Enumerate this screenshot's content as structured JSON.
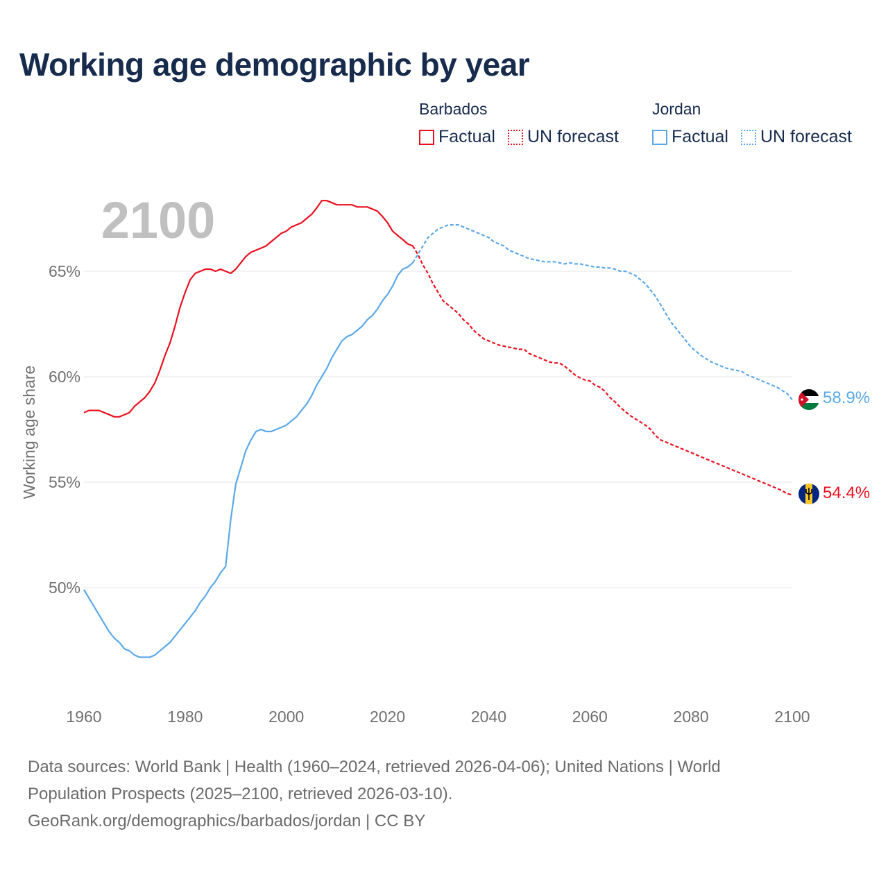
{
  "title": "Working age demographic by year",
  "legend": [
    {
      "country": "Barbados",
      "color": "#e8101e",
      "factual_label": "Factual",
      "forecast_label": "UN forecast"
    },
    {
      "country": "Jordan",
      "color": "#5ba8e8",
      "factual_label": "Factual",
      "forecast_label": "UN forecast"
    }
  ],
  "year_label": "2100",
  "footer": {
    "line1": "Data sources: World Bank | Health (1960–2024, retrieved 2026-04-06); United Nations | World",
    "line2": "Population Prospects (2025–2100, retrieved 2026-03-10).",
    "line3": "GeoRank.org/demographics/barbados/jordan | CC BY"
  },
  "colors": {
    "barbados": "#e8101e",
    "jordan": "#5ba8e8",
    "grid": "#e6e6e6",
    "axis_text": "#707070",
    "title": "#172b4d"
  },
  "chart_data": {
    "type": "line",
    "title": "Working age demographic by year",
    "xlabel": "",
    "ylabel": "Working age share",
    "xlim": [
      1960,
      2100
    ],
    "ylim": [
      45.5,
      68.5
    ],
    "x_ticks": [
      1960,
      1980,
      2000,
      2020,
      2040,
      2060,
      2080,
      2100
    ],
    "y_ticks": [
      50,
      55,
      60,
      65
    ],
    "y_tick_labels": [
      "50%",
      "55%",
      "60%",
      "65%"
    ],
    "x_tick_labels": [
      "1960",
      "1980",
      "2000",
      "2020",
      "2040",
      "2060",
      "2080",
      "2100"
    ],
    "forecast_start": 2025,
    "series": [
      {
        "name": "Barbados",
        "color": "#e8101e",
        "end_label": "54.4%",
        "flag": "barbados-flag",
        "points": [
          [
            1960,
            58.3
          ],
          [
            1961,
            58.4
          ],
          [
            1962,
            58.4
          ],
          [
            1963,
            58.4
          ],
          [
            1964,
            58.3
          ],
          [
            1965,
            58.2
          ],
          [
            1966,
            58.1
          ],
          [
            1967,
            58.1
          ],
          [
            1968,
            58.2
          ],
          [
            1969,
            58.3
          ],
          [
            1970,
            58.6
          ],
          [
            1971,
            58.8
          ],
          [
            1972,
            59.0
          ],
          [
            1973,
            59.3
          ],
          [
            1974,
            59.7
          ],
          [
            1975,
            60.3
          ],
          [
            1976,
            61.0
          ],
          [
            1977,
            61.6
          ],
          [
            1978,
            62.4
          ],
          [
            1979,
            63.3
          ],
          [
            1980,
            64.0
          ],
          [
            1981,
            64.6
          ],
          [
            1982,
            64.9
          ],
          [
            1983,
            65.0
          ],
          [
            1984,
            65.1
          ],
          [
            1985,
            65.1
          ],
          [
            1986,
            65.0
          ],
          [
            1987,
            65.1
          ],
          [
            1988,
            65.0
          ],
          [
            1989,
            64.9
          ],
          [
            1990,
            65.1
          ],
          [
            1991,
            65.4
          ],
          [
            1992,
            65.7
          ],
          [
            1993,
            65.9
          ],
          [
            1994,
            66.0
          ],
          [
            1995,
            66.1
          ],
          [
            1996,
            66.2
          ],
          [
            1997,
            66.4
          ],
          [
            1998,
            66.6
          ],
          [
            1999,
            66.8
          ],
          [
            2000,
            66.9
          ],
          [
            2001,
            67.1
          ],
          [
            2002,
            67.2
          ],
          [
            2003,
            67.3
          ],
          [
            2004,
            67.5
          ],
          [
            2005,
            67.7
          ],
          [
            2006,
            68.0
          ],
          [
            2007,
            68.35
          ],
          [
            2008,
            68.35
          ],
          [
            2009,
            68.25
          ],
          [
            2010,
            68.15
          ],
          [
            2011,
            68.15
          ],
          [
            2012,
            68.15
          ],
          [
            2013,
            68.15
          ],
          [
            2014,
            68.05
          ],
          [
            2015,
            68.05
          ],
          [
            2016,
            68.05
          ],
          [
            2017,
            67.95
          ],
          [
            2018,
            67.85
          ],
          [
            2019,
            67.6
          ],
          [
            2020,
            67.3
          ],
          [
            2021,
            66.9
          ],
          [
            2022,
            66.7
          ],
          [
            2023,
            66.5
          ],
          [
            2024,
            66.3
          ],
          [
            2025,
            66.2
          ],
          [
            2026,
            65.8
          ],
          [
            2027,
            65.3
          ],
          [
            2028,
            64.9
          ],
          [
            2029,
            64.4
          ],
          [
            2030,
            64.0
          ],
          [
            2031,
            63.6
          ],
          [
            2032,
            63.4
          ],
          [
            2033,
            63.2
          ],
          [
            2034,
            63.0
          ],
          [
            2035,
            62.7
          ],
          [
            2036,
            62.5
          ],
          [
            2037,
            62.2
          ],
          [
            2038,
            62.0
          ],
          [
            2039,
            61.8
          ],
          [
            2040,
            61.7
          ],
          [
            2041,
            61.6
          ],
          [
            2042,
            61.5
          ],
          [
            2043,
            61.45
          ],
          [
            2044,
            61.4
          ],
          [
            2045,
            61.35
          ],
          [
            2046,
            61.3
          ],
          [
            2047,
            61.3
          ],
          [
            2048,
            61.1
          ],
          [
            2049,
            61.0
          ],
          [
            2050,
            60.9
          ],
          [
            2051,
            60.8
          ],
          [
            2052,
            60.7
          ],
          [
            2053,
            60.65
          ],
          [
            2054,
            60.65
          ],
          [
            2055,
            60.5
          ],
          [
            2056,
            60.3
          ],
          [
            2057,
            60.1
          ],
          [
            2058,
            59.95
          ],
          [
            2059,
            59.85
          ],
          [
            2060,
            59.8
          ],
          [
            2061,
            59.6
          ],
          [
            2062,
            59.5
          ],
          [
            2063,
            59.3
          ],
          [
            2064,
            59.0
          ],
          [
            2065,
            58.8
          ],
          [
            2066,
            58.55
          ],
          [
            2067,
            58.35
          ],
          [
            2068,
            58.15
          ],
          [
            2069,
            58.0
          ],
          [
            2070,
            57.85
          ],
          [
            2071,
            57.7
          ],
          [
            2072,
            57.5
          ],
          [
            2073,
            57.2
          ],
          [
            2074,
            57.0
          ],
          [
            2075,
            56.9
          ],
          [
            2076,
            56.8
          ],
          [
            2077,
            56.7
          ],
          [
            2078,
            56.6
          ],
          [
            2079,
            56.5
          ],
          [
            2080,
            56.4
          ],
          [
            2081,
            56.3
          ],
          [
            2082,
            56.2
          ],
          [
            2083,
            56.1
          ],
          [
            2084,
            56.0
          ],
          [
            2085,
            55.9
          ],
          [
            2086,
            55.8
          ],
          [
            2087,
            55.7
          ],
          [
            2088,
            55.6
          ],
          [
            2089,
            55.5
          ],
          [
            2090,
            55.4
          ],
          [
            2091,
            55.3
          ],
          [
            2092,
            55.2
          ],
          [
            2093,
            55.1
          ],
          [
            2094,
            55.0
          ],
          [
            2095,
            54.9
          ],
          [
            2096,
            54.8
          ],
          [
            2097,
            54.7
          ],
          [
            2098,
            54.6
          ],
          [
            2099,
            54.45
          ],
          [
            2100,
            54.4
          ]
        ]
      },
      {
        "name": "Jordan",
        "color": "#5ba8e8",
        "end_label": "58.9%",
        "flag": "jordan-flag",
        "points": [
          [
            1960,
            49.9
          ],
          [
            1961,
            49.5
          ],
          [
            1962,
            49.1
          ],
          [
            1963,
            48.7
          ],
          [
            1964,
            48.3
          ],
          [
            1965,
            47.9
          ],
          [
            1966,
            47.6
          ],
          [
            1967,
            47.4
          ],
          [
            1968,
            47.1
          ],
          [
            1969,
            47.0
          ],
          [
            1970,
            46.8
          ],
          [
            1971,
            46.7
          ],
          [
            1972,
            46.7
          ],
          [
            1973,
            46.7
          ],
          [
            1974,
            46.8
          ],
          [
            1975,
            47.0
          ],
          [
            1976,
            47.2
          ],
          [
            1977,
            47.4
          ],
          [
            1978,
            47.7
          ],
          [
            1979,
            48.0
          ],
          [
            1980,
            48.3
          ],
          [
            1981,
            48.6
          ],
          [
            1982,
            48.9
          ],
          [
            1983,
            49.3
          ],
          [
            1984,
            49.6
          ],
          [
            1985,
            50.0
          ],
          [
            1986,
            50.3
          ],
          [
            1987,
            50.7
          ],
          [
            1988,
            51.0
          ],
          [
            1989,
            53.2
          ],
          [
            1990,
            54.9
          ],
          [
            1991,
            55.7
          ],
          [
            1992,
            56.5
          ],
          [
            1993,
            57.0
          ],
          [
            1994,
            57.4
          ],
          [
            1995,
            57.5
          ],
          [
            1996,
            57.4
          ],
          [
            1997,
            57.4
          ],
          [
            1998,
            57.5
          ],
          [
            1999,
            57.6
          ],
          [
            2000,
            57.7
          ],
          [
            2001,
            57.9
          ],
          [
            2002,
            58.1
          ],
          [
            2003,
            58.4
          ],
          [
            2004,
            58.7
          ],
          [
            2005,
            59.1
          ],
          [
            2006,
            59.6
          ],
          [
            2007,
            60.0
          ],
          [
            2008,
            60.4
          ],
          [
            2009,
            60.9
          ],
          [
            2010,
            61.3
          ],
          [
            2011,
            61.7
          ],
          [
            2012,
            61.9
          ],
          [
            2013,
            62.0
          ],
          [
            2014,
            62.2
          ],
          [
            2015,
            62.4
          ],
          [
            2016,
            62.7
          ],
          [
            2017,
            62.9
          ],
          [
            2018,
            63.2
          ],
          [
            2019,
            63.6
          ],
          [
            2020,
            63.9
          ],
          [
            2021,
            64.3
          ],
          [
            2022,
            64.8
          ],
          [
            2023,
            65.1
          ],
          [
            2024,
            65.2
          ],
          [
            2025,
            65.4
          ],
          [
            2026,
            65.8
          ],
          [
            2027,
            66.2
          ],
          [
            2028,
            66.6
          ],
          [
            2029,
            66.8
          ],
          [
            2030,
            67.0
          ],
          [
            2031,
            67.1
          ],
          [
            2032,
            67.2
          ],
          [
            2033,
            67.2
          ],
          [
            2034,
            67.2
          ],
          [
            2035,
            67.1
          ],
          [
            2036,
            67.0
          ],
          [
            2037,
            66.9
          ],
          [
            2038,
            66.8
          ],
          [
            2039,
            66.7
          ],
          [
            2040,
            66.6
          ],
          [
            2041,
            66.4
          ],
          [
            2042,
            66.3
          ],
          [
            2043,
            66.2
          ],
          [
            2044,
            66.0
          ],
          [
            2045,
            65.9
          ],
          [
            2046,
            65.8
          ],
          [
            2047,
            65.7
          ],
          [
            2048,
            65.6
          ],
          [
            2049,
            65.55
          ],
          [
            2050,
            65.5
          ],
          [
            2051,
            65.45
          ],
          [
            2052,
            65.45
          ],
          [
            2053,
            65.45
          ],
          [
            2054,
            65.4
          ],
          [
            2055,
            65.35
          ],
          [
            2056,
            65.4
          ],
          [
            2057,
            65.35
          ],
          [
            2058,
            65.35
          ],
          [
            2059,
            65.3
          ],
          [
            2060,
            65.25
          ],
          [
            2061,
            65.2
          ],
          [
            2062,
            65.2
          ],
          [
            2063,
            65.15
          ],
          [
            2064,
            65.15
          ],
          [
            2065,
            65.1
          ],
          [
            2066,
            65.0
          ],
          [
            2067,
            65.0
          ],
          [
            2068,
            64.9
          ],
          [
            2069,
            64.8
          ],
          [
            2070,
            64.6
          ],
          [
            2071,
            64.4
          ],
          [
            2072,
            64.1
          ],
          [
            2073,
            63.8
          ],
          [
            2074,
            63.4
          ],
          [
            2075,
            63.0
          ],
          [
            2076,
            62.6
          ],
          [
            2077,
            62.3
          ],
          [
            2078,
            62.0
          ],
          [
            2079,
            61.7
          ],
          [
            2080,
            61.4
          ],
          [
            2081,
            61.2
          ],
          [
            2082,
            61.0
          ],
          [
            2083,
            60.85
          ],
          [
            2084,
            60.7
          ],
          [
            2085,
            60.6
          ],
          [
            2086,
            60.5
          ],
          [
            2087,
            60.4
          ],
          [
            2088,
            60.35
          ],
          [
            2089,
            60.3
          ],
          [
            2090,
            60.25
          ],
          [
            2091,
            60.1
          ],
          [
            2092,
            60.0
          ],
          [
            2093,
            59.9
          ],
          [
            2094,
            59.8
          ],
          [
            2095,
            59.7
          ],
          [
            2096,
            59.6
          ],
          [
            2097,
            59.5
          ],
          [
            2098,
            59.35
          ],
          [
            2099,
            59.2
          ],
          [
            2100,
            58.9
          ]
        ]
      }
    ]
  }
}
